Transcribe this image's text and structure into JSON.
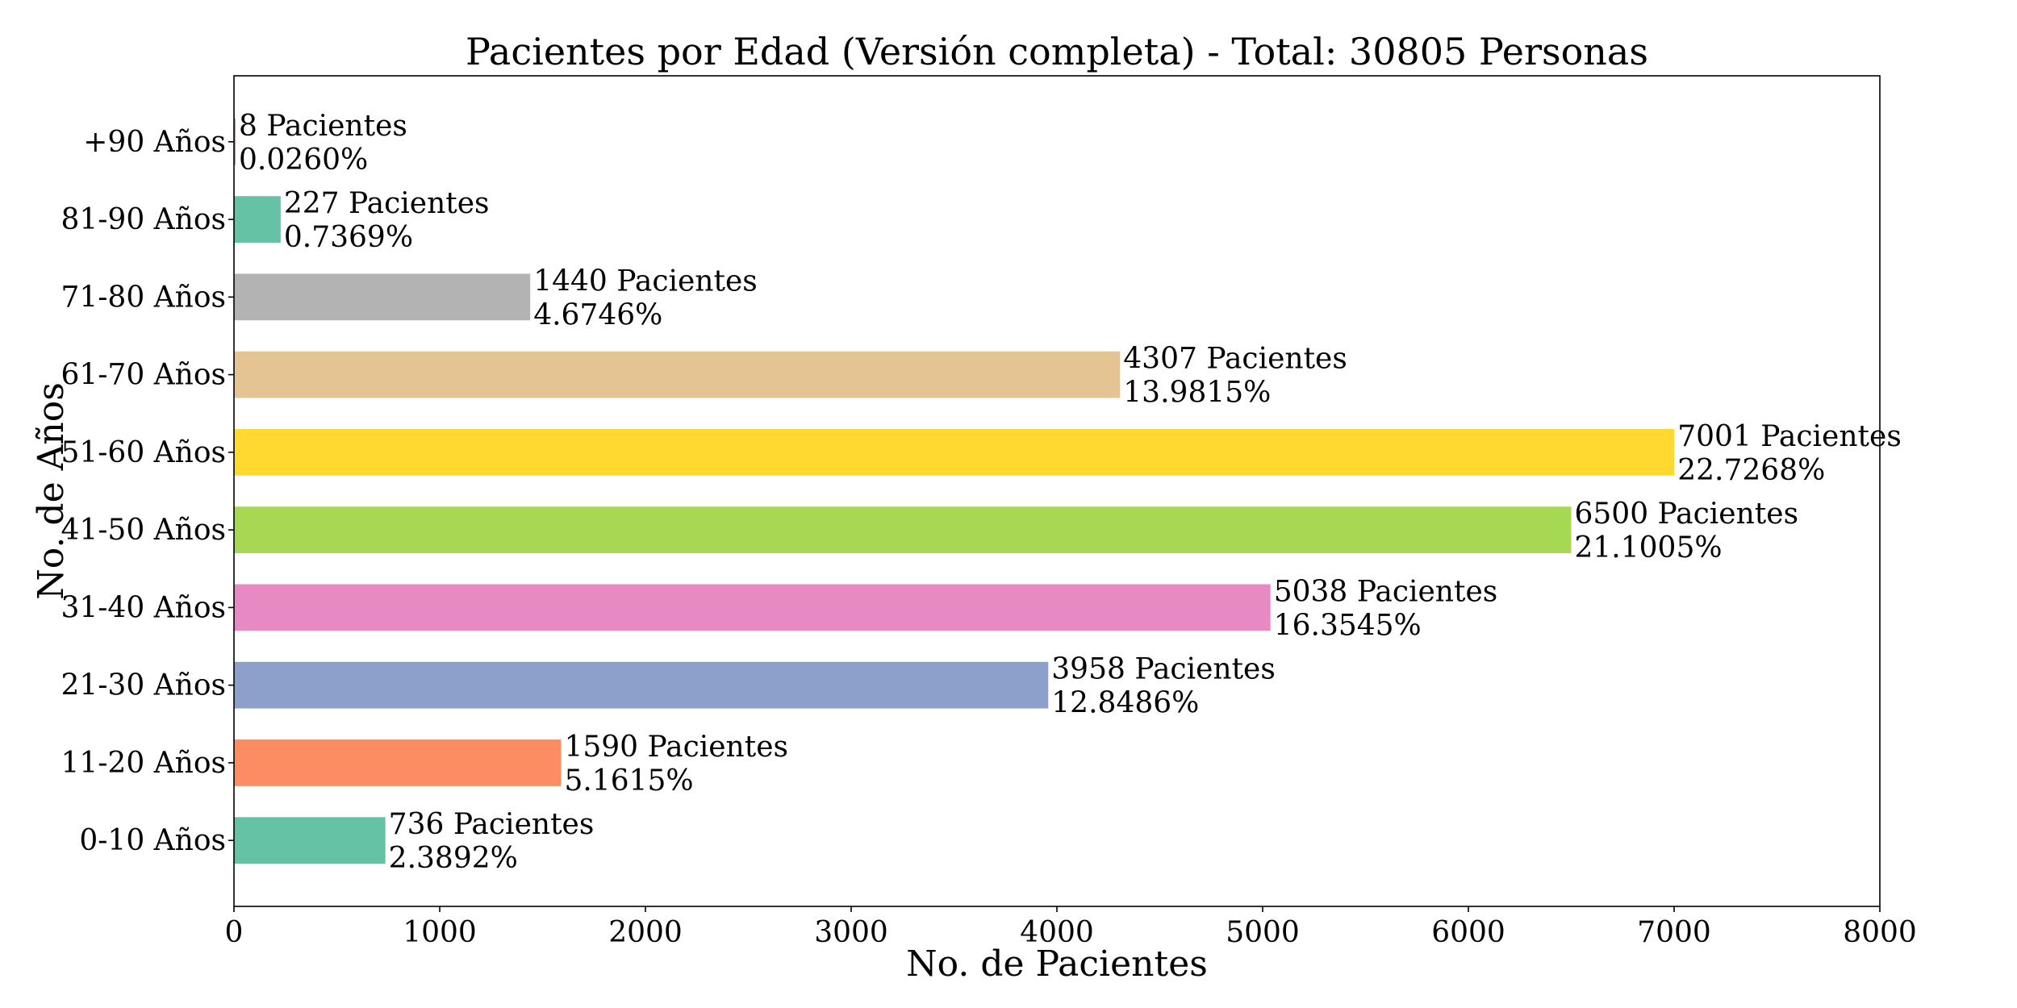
{
  "chart_data": {
    "type": "bar",
    "orientation": "horizontal",
    "title": "Pacientes por Edad (Versión completa) - Total: 30805 Personas",
    "xlabel": "No. de Pacientes",
    "ylabel": "No. de Años",
    "xlim": [
      0,
      8000
    ],
    "xticks": [
      "0",
      "1000",
      "2000",
      "3000",
      "4000",
      "5000",
      "6000",
      "7000",
      "8000"
    ],
    "grid": false,
    "legend": "none",
    "categories": [
      "0-10 Años",
      "11-20 Años",
      "21-30 Años",
      "31-40 Años",
      "41-50 Años",
      "51-60 Años",
      "61-70 Años",
      "71-80 Años",
      "81-90 Años",
      "+90 Años"
    ],
    "values": [
      736,
      1590,
      3958,
      5038,
      6500,
      7001,
      4307,
      1440,
      227,
      8
    ],
    "count_labels": [
      "736 Pacientes",
      "1590 Pacientes",
      "3958 Pacientes",
      "5038 Pacientes",
      "6500 Pacientes",
      "7001 Pacientes",
      "4307 Pacientes",
      "1440 Pacientes",
      "227 Pacientes",
      "8 Pacientes"
    ],
    "percent_labels": [
      "2.3892%",
      "5.1615%",
      "12.8486%",
      "16.3545%",
      "21.1005%",
      "22.7268%",
      "13.9815%",
      "4.6746%",
      "0.7369%",
      "0.0260%"
    ],
    "colors": [
      "#66c2a5",
      "#fc8d62",
      "#8da0cb",
      "#e78ac3",
      "#a6d854",
      "#ffd92f",
      "#e5c494",
      "#b3b3b3",
      "#66c2a5",
      "#fc8d62"
    ]
  }
}
